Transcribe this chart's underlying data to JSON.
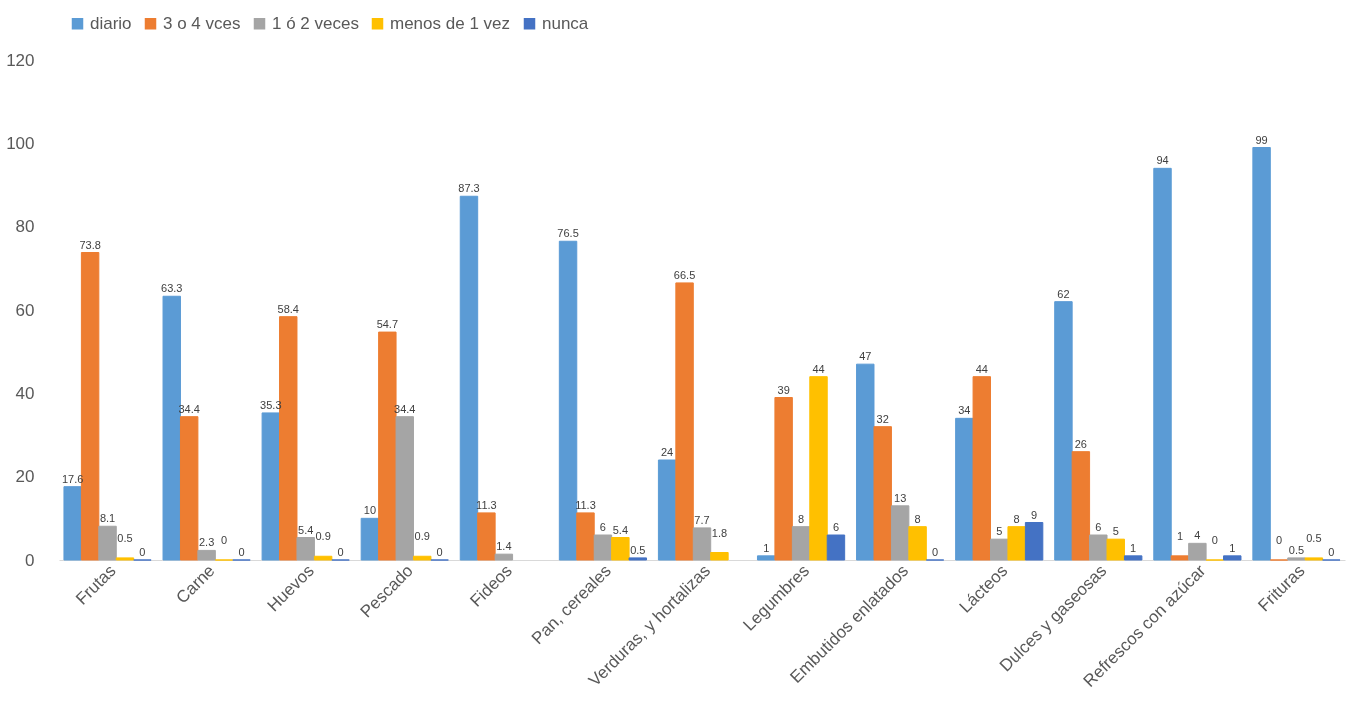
{
  "chart_data": {
    "type": "bar",
    "categories": [
      "Frutas",
      "Carne",
      "Huevos",
      "Pescado",
      "Fideos",
      "Pan, cereales",
      "Verduras, y hortalizas",
      "Legumbres",
      "Embutidos enlatados",
      "Lácteos",
      "Dulces y gaseosas",
      "Refrescos con azúcar",
      "Frituras"
    ],
    "series": [
      {
        "name": "diario",
        "color": "#5b9bd5",
        "values": [
          17.6,
          63.3,
          35.3,
          10,
          87.3,
          76.5,
          24,
          1,
          47,
          34,
          62,
          94,
          99
        ]
      },
      {
        "name": "3 o 4 vces",
        "color": "#ed7d31",
        "values": [
          73.8,
          34.4,
          58.4,
          54.7,
          11.3,
          11.3,
          66.5,
          39,
          32,
          44,
          26,
          1,
          0
        ]
      },
      {
        "name": "1 ó 2 veces",
        "color": "#a5a5a5",
        "values": [
          8.1,
          2.3,
          5.4,
          34.4,
          1.4,
          6,
          7.7,
          8,
          13,
          5,
          6,
          4,
          0.5
        ]
      },
      {
        "name": "menos de 1 vez",
        "color": "#ffc000",
        "values": [
          0.5,
          0,
          0.9,
          0.9,
          null,
          5.4,
          1.8,
          44,
          8,
          8,
          5,
          0,
          0.5
        ]
      },
      {
        "name": "nunca",
        "color": "#4472c4",
        "values": [
          0,
          0,
          0,
          0,
          null,
          0.5,
          null,
          6,
          0,
          9,
          1,
          1,
          0
        ]
      }
    ],
    "ylim": [
      0,
      120
    ],
    "yticks": [
      0,
      20,
      40,
      60,
      80,
      100,
      120
    ],
    "grid": false,
    "legend": "top",
    "data_labels": true
  }
}
